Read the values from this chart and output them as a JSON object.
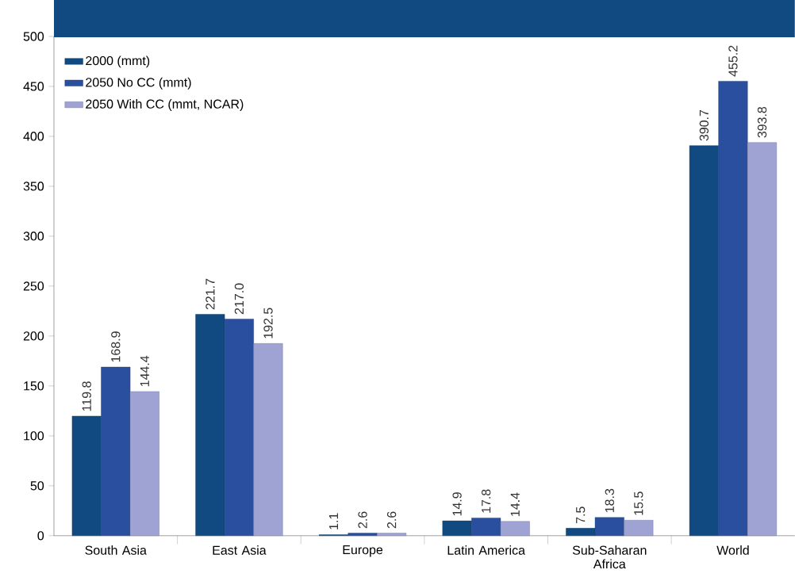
{
  "chart_data": {
    "type": "bar",
    "categories": [
      "South Asia",
      "East Asia",
      "Europe",
      "Latin America",
      "Sub-Saharan Africa",
      "World"
    ],
    "series": [
      {
        "name": "2000 (mmt)",
        "color": "#114a80",
        "values": [
          119.8,
          221.7,
          1.1,
          14.9,
          7.5,
          390.7
        ],
        "value_labels": [
          "119.8",
          "221.7",
          "1.1",
          "14.9",
          "7.5",
          "390.7"
        ]
      },
      {
        "name": "2050 No CC (mmt)",
        "color": "#2a4f9e",
        "values": [
          168.9,
          217.0,
          2.6,
          17.8,
          18.3,
          455.2
        ],
        "value_labels": [
          "168.9",
          "217.0",
          "2.6",
          "17.8",
          "18.3",
          "455.2"
        ]
      },
      {
        "name": "2050 With CC (mmt, NCAR)",
        "color": "#9ea3d4",
        "values": [
          144.4,
          192.5,
          2.6,
          14.4,
          15.5,
          393.8
        ],
        "value_labels": [
          "144.4",
          "192.5",
          "2.6",
          "14.4",
          "15.5",
          "393.8"
        ]
      }
    ],
    "ylim": [
      0,
      500
    ],
    "yticks": [
      0,
      50,
      100,
      150,
      200,
      250,
      300,
      350,
      400,
      450,
      500
    ],
    "grid": false,
    "legend": "top left"
  }
}
